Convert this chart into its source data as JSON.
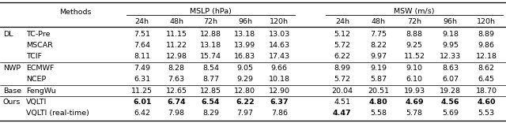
{
  "col_group_labels": [
    "MSLP (hPa)",
    "MSW (m/s)"
  ],
  "time_labels": [
    "24h",
    "48h",
    "72h",
    "96h",
    "120h"
  ],
  "row_groups": [
    {
      "group": "DL",
      "rows": [
        {
          "method": "TC-Pre",
          "mslp": [
            "7.51",
            "11.15",
            "12.88",
            "13.18",
            "13.03"
          ],
          "msw": [
            "5.12",
            "7.75",
            "8.88",
            "9.18",
            "8.89"
          ],
          "bold_mslp": [],
          "bold_msw": []
        },
        {
          "method": "MSCAR",
          "mslp": [
            "7.64",
            "11.22",
            "13.18",
            "13.99",
            "14.63"
          ],
          "msw": [
            "5.72",
            "8.22",
            "9.25",
            "9.95",
            "9.86"
          ],
          "bold_mslp": [],
          "bold_msw": []
        },
        {
          "method": "TCIF",
          "mslp": [
            "8.11",
            "12.98",
            "15.74",
            "16.83",
            "17.43"
          ],
          "msw": [
            "6.22",
            "9.97",
            "11.52",
            "12.33",
            "12.18"
          ],
          "bold_mslp": [],
          "bold_msw": []
        }
      ]
    },
    {
      "group": "NWP",
      "rows": [
        {
          "method": "ECMWF",
          "mslp": [
            "7.49",
            "8.28",
            "8.54",
            "9.05",
            "9.66"
          ],
          "msw": [
            "8.99",
            "9.19",
            "9.10",
            "8.63",
            "8.62"
          ],
          "bold_mslp": [],
          "bold_msw": []
        },
        {
          "method": "NCEP",
          "mslp": [
            "6.31",
            "7.63",
            "8.77",
            "9.29",
            "10.18"
          ],
          "msw": [
            "5.72",
            "5.87",
            "6.10",
            "6.07",
            "6.45"
          ],
          "bold_mslp": [],
          "bold_msw": []
        }
      ]
    },
    {
      "group": "Base",
      "rows": [
        {
          "method": "FengWu",
          "mslp": [
            "11.25",
            "12.65",
            "12.85",
            "12.80",
            "12.90"
          ],
          "msw": [
            "20.04",
            "20.51",
            "19.93",
            "19.28",
            "18.70"
          ],
          "bold_mslp": [],
          "bold_msw": []
        }
      ]
    },
    {
      "group": "Ours",
      "rows": [
        {
          "method": "VQLTI",
          "mslp": [
            "6.01",
            "6.74",
            "6.54",
            "6.22",
            "6.37"
          ],
          "msw": [
            "4.51",
            "4.80",
            "4.69",
            "4.56",
            "4.60"
          ],
          "bold_mslp": [
            0,
            1,
            2,
            3,
            4
          ],
          "bold_msw": [
            1,
            2,
            3,
            4
          ]
        },
        {
          "method": "VQLTI (real-time)",
          "mslp": [
            "6.42",
            "7.98",
            "8.29",
            "7.97",
            "7.86"
          ],
          "msw": [
            "4.47",
            "5.58",
            "5.78",
            "5.69",
            "5.53"
          ],
          "bold_mslp": [],
          "bold_msw": [
            0
          ]
        }
      ]
    }
  ],
  "font_size": 6.8,
  "group_sizes": [
    3,
    2,
    1,
    2
  ]
}
